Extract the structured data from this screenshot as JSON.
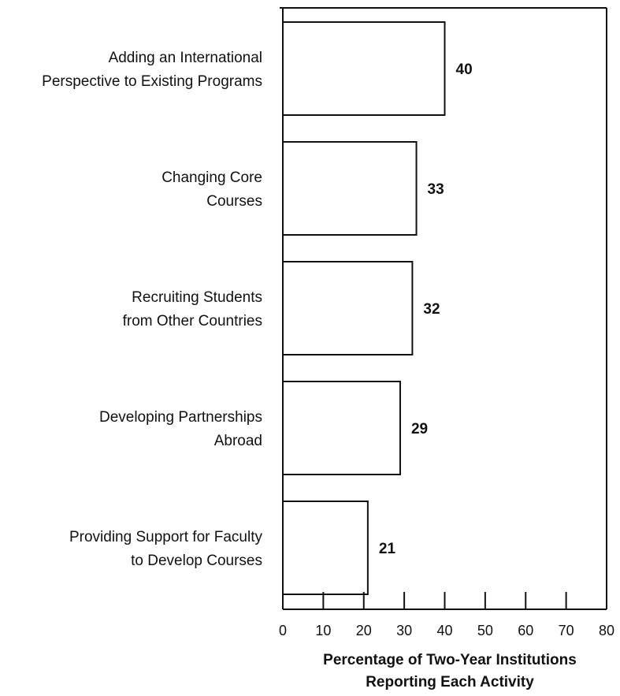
{
  "chart_data": {
    "type": "bar",
    "orientation": "horizontal",
    "categories": [
      [
        "Adding an International",
        "Perspective to Existing Programs"
      ],
      [
        "Changing Core",
        "Courses"
      ],
      [
        "Recruiting Students",
        "from Other Countries"
      ],
      [
        "Developing Partnerships",
        "Abroad"
      ],
      [
        "Providing Support for Faculty",
        "to Develop Courses"
      ]
    ],
    "values": [
      40,
      33,
      32,
      29,
      21
    ],
    "value_labels": [
      "40",
      "33",
      "32",
      "29",
      "21"
    ],
    "xlabel": [
      "Percentage of Two-Year Institutions",
      "Reporting Each Activity"
    ],
    "ylabel": "",
    "xlim": [
      0,
      80
    ],
    "xticks": [
      0,
      10,
      20,
      30,
      40,
      50,
      60,
      70,
      80
    ],
    "xtick_labels": [
      "0",
      "10",
      "20",
      "30",
      "40",
      "50",
      "60",
      "70",
      "80"
    ],
    "grid": false,
    "legend": "none",
    "bar_fill": "#ffffff",
    "bar_stroke": "#111111",
    "axis_color": "#111111"
  }
}
